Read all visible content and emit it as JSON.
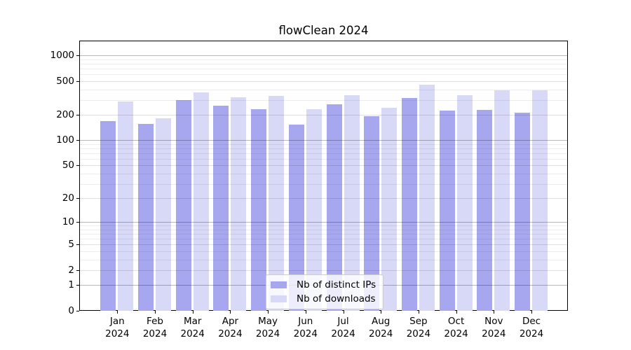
{
  "chart_data": {
    "type": "bar",
    "title": "flowClean 2024",
    "categories": [
      "Jan 2024",
      "Feb 2024",
      "Mar 2024",
      "Apr 2024",
      "May 2024",
      "Jun 2024",
      "Jul 2024",
      "Aug 2024",
      "Sep 2024",
      "Oct 2024",
      "Nov 2024",
      "Dec 2024"
    ],
    "series": [
      {
        "name": "Nb of distinct IPs",
        "color": "#a7a7f0",
        "values": [
          170,
          155,
          300,
          255,
          235,
          154,
          265,
          193,
          315,
          223,
          230,
          211
        ]
      },
      {
        "name": "Nb of downloads",
        "color": "#d8d8f7",
        "values": [
          285,
          182,
          370,
          320,
          335,
          233,
          343,
          240,
          455,
          340,
          387,
          389
        ]
      }
    ],
    "xlabel": "",
    "ylabel": "",
    "yscale": "log1p",
    "ylim": [
      0,
      1455
    ],
    "y_ticks": [
      0,
      1,
      2,
      5,
      10,
      20,
      50,
      100,
      200,
      500,
      1000
    ],
    "grid": true,
    "grid_on_top_of_bars": true,
    "legend_position": "lower center"
  }
}
